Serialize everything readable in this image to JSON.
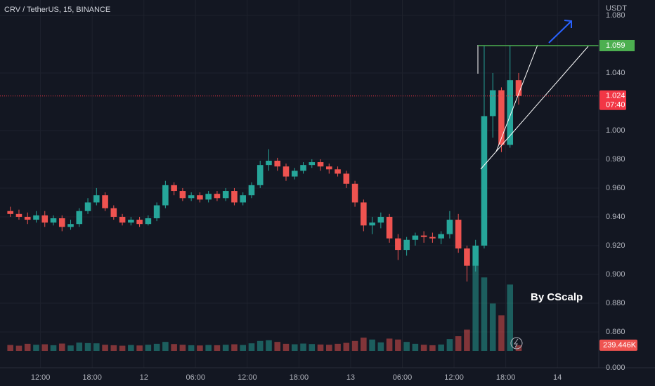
{
  "chart_data": {
    "type": "candlestick",
    "title": "CRV / TetherUS, 15, BINANCE",
    "y_unit": "USDT",
    "watermark": "By CScalp",
    "x": [
      -16,
      -15,
      -14,
      -13,
      -12,
      -11,
      -10,
      -9,
      -8,
      -7,
      -6,
      -5,
      -4,
      -3,
      -2,
      -1,
      0,
      1,
      2,
      3,
      4,
      5,
      6,
      7,
      8,
      9,
      10,
      11,
      12,
      13,
      14,
      15,
      16,
      17,
      18,
      19,
      20,
      21,
      22,
      23,
      24,
      25,
      26,
      27,
      28,
      29,
      30,
      31,
      32,
      33,
      34,
      35,
      36,
      37,
      38,
      39,
      40,
      41,
      42,
      43
    ],
    "open": [
      0.944,
      0.942,
      0.94,
      0.938,
      0.941,
      0.936,
      0.939,
      0.933,
      0.935,
      0.944,
      0.95,
      0.955,
      0.946,
      0.94,
      0.936,
      0.938,
      0.935,
      0.939,
      0.948,
      0.962,
      0.958,
      0.953,
      0.955,
      0.952,
      0.956,
      0.953,
      0.958,
      0.95,
      0.955,
      0.962,
      0.976,
      0.979,
      0.975,
      0.968,
      0.972,
      0.976,
      0.978,
      0.975,
      0.973,
      0.97,
      0.963,
      0.95,
      0.934,
      0.936,
      0.94,
      0.925,
      0.917,
      0.924,
      0.927,
      0.926,
      0.925,
      0.928,
      0.938,
      0.918,
      0.906,
      0.92,
      1.01,
      1.028,
      0.99,
      1.035
    ],
    "high": [
      0.947,
      0.945,
      0.943,
      0.944,
      0.944,
      0.941,
      0.941,
      0.938,
      0.946,
      0.953,
      0.96,
      0.957,
      0.948,
      0.942,
      0.94,
      0.94,
      0.941,
      0.95,
      0.965,
      0.964,
      0.96,
      0.957,
      0.957,
      0.958,
      0.958,
      0.96,
      0.96,
      0.957,
      0.964,
      0.979,
      0.987,
      0.981,
      0.977,
      0.974,
      0.978,
      0.98,
      0.98,
      0.977,
      0.975,
      0.972,
      0.965,
      0.952,
      0.94,
      0.943,
      0.942,
      0.928,
      0.926,
      0.929,
      0.93,
      0.929,
      0.93,
      0.944,
      0.942,
      0.92,
      0.924,
      1.059,
      1.04,
      1.03,
      1.059,
      1.04
    ],
    "low": [
      0.94,
      0.938,
      0.935,
      0.936,
      0.933,
      0.934,
      0.93,
      0.931,
      0.933,
      0.942,
      0.948,
      0.944,
      0.938,
      0.934,
      0.934,
      0.933,
      0.934,
      0.937,
      0.946,
      0.955,
      0.951,
      0.951,
      0.95,
      0.95,
      0.951,
      0.951,
      0.948,
      0.948,
      0.953,
      0.96,
      0.972,
      0.972,
      0.965,
      0.966,
      0.97,
      0.974,
      0.972,
      0.97,
      0.968,
      0.96,
      0.947,
      0.93,
      0.928,
      0.932,
      0.922,
      0.91,
      0.913,
      0.92,
      0.922,
      0.922,
      0.921,
      0.925,
      0.915,
      0.895,
      0.902,
      0.918,
      0.995,
      0.985,
      0.988,
      1.018
    ],
    "close": [
      0.942,
      0.94,
      0.938,
      0.941,
      0.936,
      0.939,
      0.933,
      0.935,
      0.944,
      0.95,
      0.955,
      0.946,
      0.94,
      0.936,
      0.938,
      0.935,
      0.939,
      0.948,
      0.962,
      0.958,
      0.953,
      0.955,
      0.952,
      0.956,
      0.953,
      0.958,
      0.95,
      0.955,
      0.962,
      0.976,
      0.979,
      0.975,
      0.968,
      0.972,
      0.976,
      0.978,
      0.975,
      0.973,
      0.97,
      0.963,
      0.95,
      0.934,
      0.936,
      0.94,
      0.925,
      0.917,
      0.924,
      0.927,
      0.926,
      0.925,
      0.928,
      0.938,
      0.918,
      0.906,
      0.92,
      1.01,
      1.028,
      0.99,
      1.035,
      1.024
    ],
    "volume": {
      "values": [
        250,
        220,
        300,
        260,
        280,
        240,
        310,
        230,
        350,
        330,
        320,
        260,
        240,
        220,
        250,
        230,
        260,
        300,
        380,
        290,
        260,
        240,
        230,
        250,
        240,
        260,
        280,
        250,
        320,
        420,
        450,
        380,
        300,
        280,
        310,
        290,
        270,
        260,
        300,
        340,
        420,
        560,
        480,
        360,
        520,
        480,
        380,
        300,
        260,
        240,
        270,
        500,
        620,
        900,
        3700,
        3100,
        2000,
        1500,
        2800,
        239.446
      ],
      "last_label": "239.446K",
      "lim": [
        0,
        4500
      ],
      "ticks": [
        {
          "value": 0,
          "label": "0.000"
        }
      ]
    },
    "up_color": "#26a69a",
    "down_color": "#ef5350",
    "xlim": [
      -16.7,
      52.8
    ],
    "xticks": [
      {
        "value": -12,
        "label": "12:00"
      },
      {
        "value": -6,
        "label": "18:00"
      },
      {
        "value": 0,
        "label": "12"
      },
      {
        "value": 6,
        "label": "06:00"
      },
      {
        "value": 12,
        "label": "12:00"
      },
      {
        "value": 18,
        "label": "18:00"
      },
      {
        "value": 24,
        "label": "13"
      },
      {
        "value": 30,
        "label": "06:00"
      },
      {
        "value": 36,
        "label": "12:00"
      },
      {
        "value": 42,
        "label": "18:00"
      },
      {
        "value": 48,
        "label": "14"
      }
    ],
    "ylim": [
      0.8351,
      1.0907
    ],
    "yticks": [
      {
        "value": 1.08,
        "label": "1.080"
      },
      {
        "value": 1.04,
        "label": "1.040"
      },
      {
        "value": 1.0,
        "label": "1.000"
      },
      {
        "value": 0.98,
        "label": "0.980"
      },
      {
        "value": 0.96,
        "label": "0.960"
      },
      {
        "value": 0.94,
        "label": "0.940"
      },
      {
        "value": 0.92,
        "label": "0.920"
      },
      {
        "value": 0.9,
        "label": "0.900"
      },
      {
        "value": 0.88,
        "label": "0.880"
      },
      {
        "value": 0.86,
        "label": "0.860"
      }
    ],
    "grid": true,
    "level": {
      "value": 1.059,
      "label": "1.059",
      "color": "#4caf50"
    },
    "last_price": {
      "value": 1.024,
      "label": "1.024",
      "countdown": "07:40",
      "color": "#f23645"
    }
  }
}
